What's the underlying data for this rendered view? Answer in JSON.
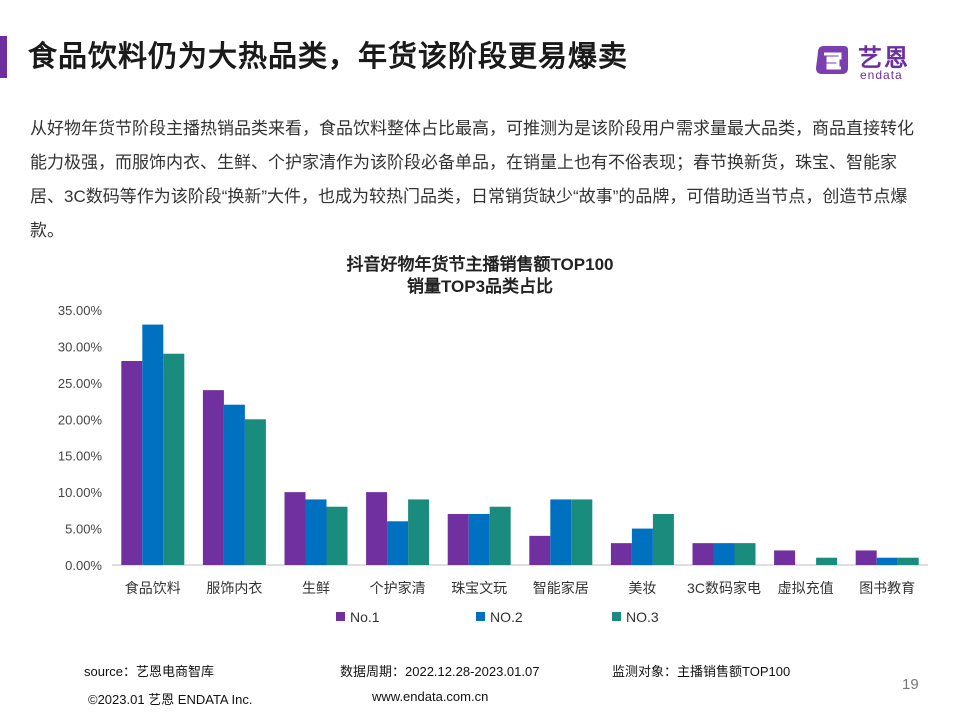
{
  "header": {
    "title": "食品饮料仍为大热品类，年货该阶段更易爆卖",
    "logo_cn": "艺恩",
    "logo_en": "endata",
    "accent_color": "#6b2fa0"
  },
  "intro": "从好物年货节阶段主播热销品类来看，食品饮料整体占比最高，可推测为是该阶段用户需求量最大品类，商品直接转化能力极强，而服饰内衣、生鲜、个护家清作为该阶段必备单品，在销量上也有不俗表现；春节换新货，珠宝、智能家居、3C数码等作为该阶段“换新”大件，也成为较热门品类，日常销货缺少“故事”的品牌，可借助适当节点，创造节点爆款。",
  "chart_data": {
    "type": "bar",
    "title": "抖音好物年货节主播销售额TOP100",
    "subtitle": "销量TOP3品类占比",
    "categories": [
      "食品饮料",
      "服饰内衣",
      "生鲜",
      "个护家清",
      "珠宝文玩",
      "智能家居",
      "美妆",
      "3C数码家电",
      "虚拟充值",
      "图书教育"
    ],
    "series": [
      {
        "name": "No.1",
        "color": "#7030a0",
        "values": [
          28,
          24,
          10,
          10,
          7,
          4,
          3,
          3,
          2,
          2
        ]
      },
      {
        "name": "NO.2",
        "color": "#0070c0",
        "values": [
          33,
          22,
          9,
          6,
          7,
          9,
          5,
          3,
          0,
          1
        ]
      },
      {
        "name": "NO.3",
        "color": "#1a8c7d",
        "values": [
          29,
          20,
          8,
          9,
          8,
          9,
          7,
          3,
          1,
          1
        ]
      }
    ],
    "ylim": [
      0,
      35
    ],
    "yticks": [
      "0.00%",
      "5.00%",
      "10.00%",
      "15.00%",
      "20.00%",
      "25.00%",
      "30.00%",
      "35.00%"
    ],
    "ytick_values": [
      0,
      5,
      10,
      15,
      20,
      25,
      30,
      35
    ],
    "grid": false,
    "legend": "bottom"
  },
  "footer": {
    "source": "source：艺恩电商智库",
    "period": "数据周期：2022.12.28-2023.01.07",
    "target": "监测对象：主播销售额TOP100",
    "copyright": "©2023.01 艺恩 ENDATA Inc.",
    "website": "www.endata.com.cn",
    "page_number": "19"
  }
}
